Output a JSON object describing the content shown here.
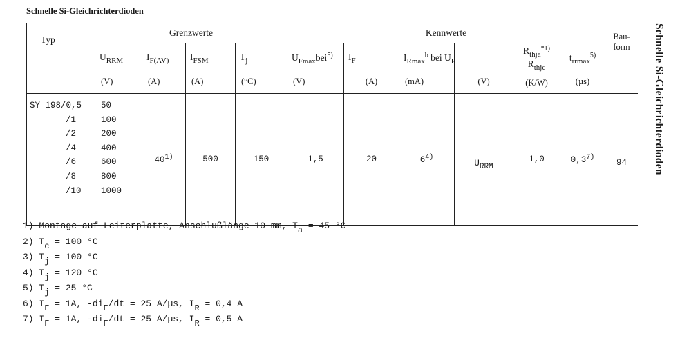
{
  "title": "Schnelle Si-Gleichrichterdioden",
  "side_title": "Schnelle Si-Gleichrichterdioden",
  "table": {
    "typ": "Typ",
    "grenzwerte": "Grenzwerte",
    "kennwerte": "Kennwerte",
    "bauform": "Bau-\nform",
    "cols": [
      {
        "seg": [
          {
            "t": "U"
          },
          {
            "s": "RRM"
          }
        ],
        "unit": "(V)"
      },
      {
        "seg": [
          {
            "t": "I"
          },
          {
            "s": "F(AV)"
          }
        ],
        "unit": "(A)"
      },
      {
        "seg": [
          {
            "t": "I"
          },
          {
            "s": "FSM"
          }
        ],
        "unit": "(A)"
      },
      {
        "seg": [
          {
            "t": "T"
          },
          {
            "s": "j"
          }
        ],
        "unit": "(°C)"
      },
      {
        "seg": [
          {
            "t": "U"
          },
          {
            "s": "Fmax"
          },
          {
            "t": "bei"
          },
          {
            "p": "5)"
          }
        ],
        "unit": "(V)"
      },
      {
        "seg": [
          {
            "t": "I"
          },
          {
            "s": "F"
          }
        ],
        "unit": "(A)"
      },
      {
        "seg": [
          {
            "t": "I"
          },
          {
            "s": "Rmax"
          },
          {
            "p": "b"
          },
          {
            "t": " bei U"
          },
          {
            "s": "R"
          }
        ],
        "unit": "(mA)"
      },
      {
        "seg": [],
        "unit": "(V)"
      },
      {
        "seg": [
          {
            "t": "R"
          },
          {
            "s": "thja"
          },
          {
            "p": "*1)"
          }
        ],
        "seg2": [
          {
            "t": "R"
          },
          {
            "s": "thjc"
          }
        ],
        "unit": "(K/W)"
      },
      {
        "seg": [
          {
            "t": "t"
          },
          {
            "s": "rrmax"
          },
          {
            "p": "5)"
          }
        ],
        "unit": "(µs)"
      }
    ],
    "types": [
      "SY 198/0,5",
      "/1",
      "/2",
      "/4",
      "/6",
      "/8",
      "/10"
    ],
    "urrm": [
      "50",
      "100",
      "200",
      "400",
      "600",
      "800",
      "1000"
    ],
    "values": {
      "if_av": [
        {
          "t": "40"
        },
        {
          "p": "1)"
        }
      ],
      "ifsm": "500",
      "tj": "150",
      "uf": "1,5",
      "if": "20",
      "ir": [
        {
          "t": "6"
        },
        {
          "p": "4)"
        }
      ],
      "ur": [
        {
          "t": "U"
        },
        {
          "s": "RRM"
        }
      ],
      "rth": "1,0",
      "trr": [
        {
          "t": "0,3"
        },
        {
          "p": "7)"
        }
      ],
      "bauform": "94"
    }
  },
  "footnotes": [
    [
      {
        "t": "1) Montage auf Leiterplatte, Anschlußlänge 10 mm, T"
      },
      {
        "s": "a"
      },
      {
        "t": " = 45 °C"
      }
    ],
    [
      {
        "t": "2) T"
      },
      {
        "s": "c"
      },
      {
        "t": " = 100 °C"
      }
    ],
    [
      {
        "t": "3) T"
      },
      {
        "s": "j"
      },
      {
        "t": " = 100 °C"
      }
    ],
    [
      {
        "t": "4) T"
      },
      {
        "s": "j"
      },
      {
        "t": " = 120 °C"
      }
    ],
    [
      {
        "t": "5) T"
      },
      {
        "s": "j"
      },
      {
        "t": " = 25 °C"
      }
    ],
    [
      {
        "t": "6) I"
      },
      {
        "s": "F"
      },
      {
        "t": " = 1A, -di"
      },
      {
        "s": "F"
      },
      {
        "t": "/dt = 25 A/µs, I"
      },
      {
        "s": "R"
      },
      {
        "t": " = 0,4 A"
      }
    ],
    [
      {
        "t": "7) I"
      },
      {
        "s": "F"
      },
      {
        "t": " = 1A, -di"
      },
      {
        "s": "F"
      },
      {
        "t": "/dt = 25 A/µs, I"
      },
      {
        "s": "R"
      },
      {
        "t": " = 0,5 A"
      }
    ]
  ]
}
